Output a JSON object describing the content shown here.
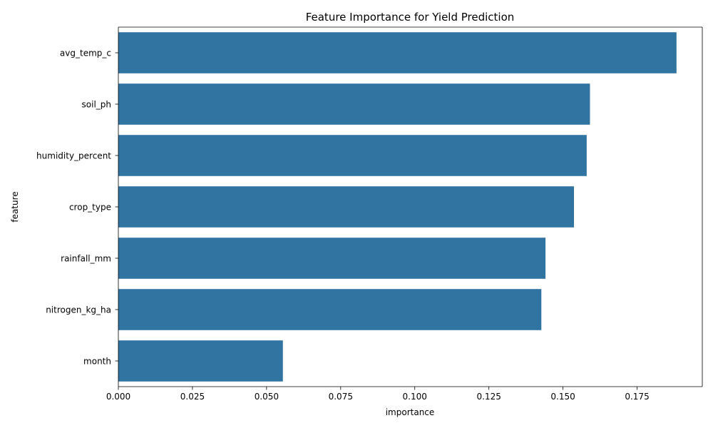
{
  "chart_data": {
    "type": "bar",
    "orientation": "horizontal",
    "title": "Feature Importance for Yield Prediction",
    "xlabel": "importance",
    "ylabel": "feature",
    "categories": [
      "avg_temp_c",
      "soil_ph",
      "humidity_percent",
      "crop_type",
      "rainfall_mm",
      "nitrogen_kg_ha",
      "month"
    ],
    "values": [
      0.1883,
      0.1591,
      0.158,
      0.1537,
      0.1441,
      0.1427,
      0.0555
    ],
    "xlim": [
      0,
      0.197
    ],
    "xticks": [
      0,
      0.025,
      0.05,
      0.075,
      0.1,
      0.125,
      0.15,
      0.175
    ],
    "xtick_labels": [
      "0.000",
      "0.025",
      "0.050",
      "0.075",
      "0.100",
      "0.125",
      "0.150",
      "0.175"
    ],
    "bar_color": "#3274a1",
    "grid": false
  }
}
